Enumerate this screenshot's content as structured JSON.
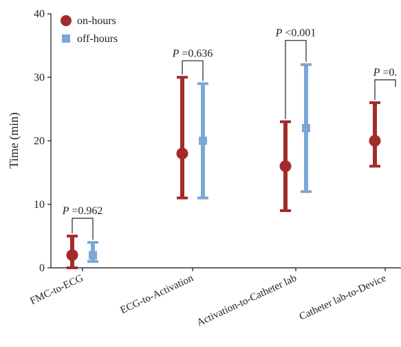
{
  "chart_data": {
    "type": "errorbar",
    "title": "",
    "xlabel": "",
    "ylabel": "Time (min)",
    "ylim": [
      0,
      40
    ],
    "yticks": [
      0,
      10,
      20,
      30,
      40
    ],
    "grid": false,
    "legend_position": "top-left",
    "categories": [
      "FMC-to-ECG",
      "ECG-to-Activation",
      "Activation-to-Catheter lab",
      "Catheter lab-to-Device"
    ],
    "series": [
      {
        "name": "on-hours",
        "color": "#a52a2a",
        "marker": "circle",
        "median": [
          2,
          18,
          16,
          20
        ],
        "lower": [
          0,
          11,
          9,
          16
        ],
        "upper": [
          5,
          30,
          23,
          26
        ]
      },
      {
        "name": "off-hours",
        "color": "#7ba7d6",
        "marker": "square",
        "median": [
          2,
          20,
          22,
          null
        ],
        "lower": [
          1,
          11,
          12,
          null
        ],
        "upper": [
          4,
          29,
          32,
          null
        ]
      }
    ],
    "annotations": [
      {
        "category_index": 0,
        "p_symbol": "P",
        "p_text": " =0.962",
        "bracket_y": 7.8
      },
      {
        "category_index": 1,
        "p_symbol": "P",
        "p_text": " =0.636",
        "bracket_y": 32.6
      },
      {
        "category_index": 2,
        "p_symbol": "P",
        "p_text": " <0.001",
        "bracket_y": 35.8
      },
      {
        "category_index": 3,
        "p_symbol": "P",
        "p_text": " =0.",
        "bracket_y": 29.6
      }
    ]
  }
}
